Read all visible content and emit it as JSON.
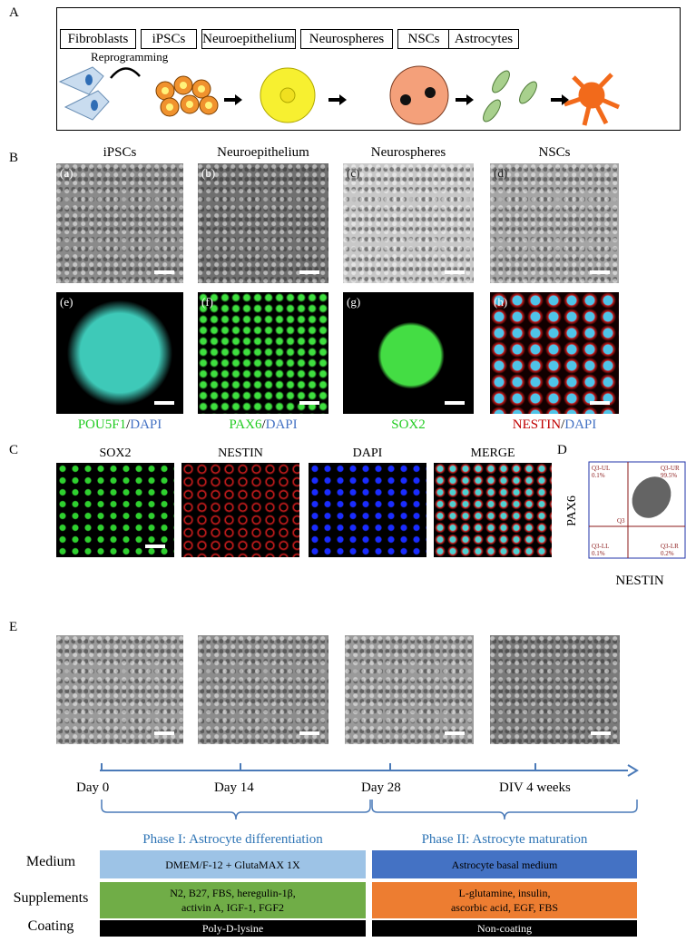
{
  "panels": {
    "a": "A",
    "b": "B",
    "c": "C",
    "d": "D",
    "e": "E"
  },
  "schematic": {
    "stages": [
      "Fibroblasts",
      "iPSCs",
      "Neuroepithelium",
      "Neurospheres",
      "NSCs",
      "Astrocytes"
    ],
    "reprogramming": "Reprogramming"
  },
  "panel_b": {
    "columns": [
      "iPSCs",
      "Neuroepithelium",
      "Neurospheres",
      "NSCs"
    ],
    "subpanels": [
      "(a)",
      "(b)",
      "(c)",
      "(d)",
      "(e)",
      "(f)",
      "(g)",
      "(h)"
    ],
    "captions": [
      {
        "marker": "POU5F1",
        "sep": "/",
        "dapi": "DAPI"
      },
      {
        "marker": "PAX6",
        "sep": "/",
        "dapi": "DAPI"
      },
      {
        "marker": "SOX2"
      },
      {
        "marker": "NESTIN",
        "sep": "/",
        "dapi": "DAPI"
      }
    ]
  },
  "panel_c": {
    "columns": [
      "SOX2",
      "NESTIN",
      "DAPI",
      "MERGE"
    ]
  },
  "panel_d": {
    "xlabel": "NESTIN",
    "ylabel": "PAX6",
    "gate": "Q3",
    "quadrants": [
      {
        "name": "Q3-UL",
        "value": "0.1%"
      },
      {
        "name": "Q3-UR",
        "value": "99.5%"
      },
      {
        "name": "Q3-LL",
        "value": "0.1%"
      },
      {
        "name": "Q3-LR",
        "value": "0.2%"
      }
    ]
  },
  "panel_e": {
    "timeline": [
      "Day 0",
      "Day 14",
      "Day 28",
      "DIV 4 weeks"
    ],
    "phases": [
      "Phase I: Astrocyte differentiation",
      "Phase II: Astrocyte maturation"
    ],
    "row_labels": [
      "Medium",
      "Supplements",
      "Coating"
    ],
    "medium": [
      "DMEM/F-12 + GlutaMAX 1X",
      "Astrocyte basal medium"
    ],
    "supplements": [
      [
        "N2, B27, FBS, heregulin-1β,",
        "activin A, IGF-1, FGF2"
      ],
      [
        "L-glutamine, insulin,",
        "ascorbic acid, EGF, FBS"
      ]
    ],
    "coating": [
      "Poly-D-lysine",
      "Non-coating"
    ]
  },
  "colors": {
    "phase_title": "#2e74b5",
    "medium1": "#9dc3e6",
    "medium2": "#4472c4",
    "supp1": "#70ad47",
    "supp2": "#ed7d31",
    "coating": "#000000",
    "green": "#00cc00",
    "red": "#dd2222",
    "blue": "#4472c4"
  }
}
